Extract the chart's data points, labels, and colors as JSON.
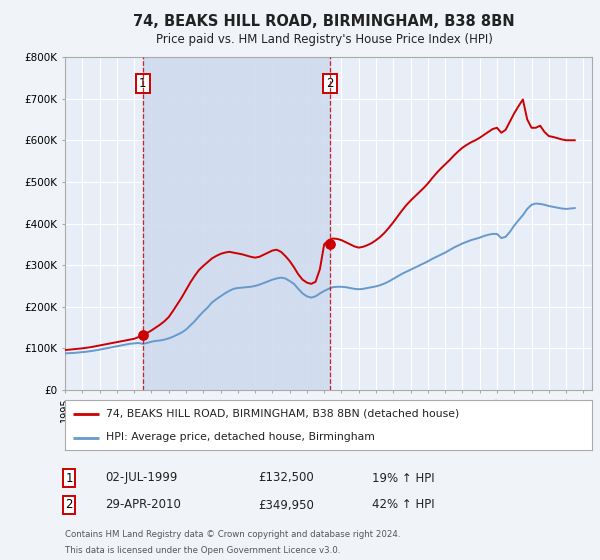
{
  "title": "74, BEAKS HILL ROAD, BIRMINGHAM, B38 8BN",
  "subtitle": "Price paid vs. HM Land Registry's House Price Index (HPI)",
  "bg_color": "#f0f4f8",
  "plot_bg_color": "#e8eef8",
  "grid_color": "#ffffff",
  "red_color": "#cc0000",
  "blue_color": "#6699cc",
  "shade_color": "#cdd9ee",
  "ylim": [
    0,
    800000
  ],
  "yticks": [
    0,
    100000,
    200000,
    300000,
    400000,
    500000,
    600000,
    700000,
    800000
  ],
  "ytick_labels": [
    "£0",
    "£100K",
    "£200K",
    "£300K",
    "£400K",
    "£500K",
    "£600K",
    "£700K",
    "£800K"
  ],
  "xmin": 1995.0,
  "xmax": 2025.5,
  "marker1_x": 1999.5,
  "marker1_y": 132500,
  "marker2_x": 2010.33,
  "marker2_y": 349950,
  "vline1_x": 1999.5,
  "vline2_x": 2010.33,
  "legend_line1": "74, BEAKS HILL ROAD, BIRMINGHAM, B38 8BN (detached house)",
  "legend_line2": "HPI: Average price, detached house, Birmingham",
  "table_row1": [
    "1",
    "02-JUL-1999",
    "£132,500",
    "19% ↑ HPI"
  ],
  "table_row2": [
    "2",
    "29-APR-2010",
    "£349,950",
    "42% ↑ HPI"
  ],
  "footer1": "Contains HM Land Registry data © Crown copyright and database right 2024.",
  "footer2": "This data is licensed under the Open Government Licence v3.0.",
  "hpi_data": {
    "years": [
      1995.0,
      1995.25,
      1995.5,
      1995.75,
      1996.0,
      1996.25,
      1996.5,
      1996.75,
      1997.0,
      1997.25,
      1997.5,
      1997.75,
      1998.0,
      1998.25,
      1998.5,
      1998.75,
      1999.0,
      1999.25,
      1999.5,
      1999.75,
      2000.0,
      2000.25,
      2000.5,
      2000.75,
      2001.0,
      2001.25,
      2001.5,
      2001.75,
      2002.0,
      2002.25,
      2002.5,
      2002.75,
      2003.0,
      2003.25,
      2003.5,
      2003.75,
      2004.0,
      2004.25,
      2004.5,
      2004.75,
      2005.0,
      2005.25,
      2005.5,
      2005.75,
      2006.0,
      2006.25,
      2006.5,
      2006.75,
      2007.0,
      2007.25,
      2007.5,
      2007.75,
      2008.0,
      2008.25,
      2008.5,
      2008.75,
      2009.0,
      2009.25,
      2009.5,
      2009.75,
      2010.0,
      2010.25,
      2010.5,
      2010.75,
      2011.0,
      2011.25,
      2011.5,
      2011.75,
      2012.0,
      2012.25,
      2012.5,
      2012.75,
      2013.0,
      2013.25,
      2013.5,
      2013.75,
      2014.0,
      2014.25,
      2014.5,
      2014.75,
      2015.0,
      2015.25,
      2015.5,
      2015.75,
      2016.0,
      2016.25,
      2016.5,
      2016.75,
      2017.0,
      2017.25,
      2017.5,
      2017.75,
      2018.0,
      2018.25,
      2018.5,
      2018.75,
      2019.0,
      2019.25,
      2019.5,
      2019.75,
      2020.0,
      2020.25,
      2020.5,
      2020.75,
      2021.0,
      2021.25,
      2021.5,
      2021.75,
      2022.0,
      2022.25,
      2022.5,
      2022.75,
      2023.0,
      2023.25,
      2023.5,
      2023.75,
      2024.0,
      2024.25,
      2024.5
    ],
    "values": [
      88000,
      88500,
      89000,
      90000,
      91000,
      92000,
      93500,
      95000,
      97000,
      99000,
      101000,
      103000,
      105000,
      107000,
      109000,
      111000,
      112000,
      113000,
      111000,
      113000,
      116000,
      118000,
      119000,
      121000,
      124000,
      128000,
      133000,
      138000,
      145000,
      155000,
      165000,
      177000,
      188000,
      198000,
      210000,
      218000,
      225000,
      232000,
      238000,
      243000,
      245000,
      246000,
      247000,
      248000,
      250000,
      253000,
      257000,
      261000,
      265000,
      268000,
      270000,
      268000,
      262000,
      255000,
      243000,
      232000,
      225000,
      222000,
      225000,
      232000,
      238000,
      243000,
      247000,
      248000,
      248000,
      247000,
      245000,
      243000,
      242000,
      243000,
      245000,
      247000,
      249000,
      252000,
      256000,
      261000,
      267000,
      273000,
      279000,
      284000,
      289000,
      294000,
      299000,
      304000,
      309000,
      315000,
      320000,
      325000,
      330000,
      336000,
      342000,
      347000,
      352000,
      356000,
      360000,
      363000,
      366000,
      370000,
      373000,
      375000,
      375000,
      365000,
      368000,
      380000,
      395000,
      408000,
      420000,
      435000,
      445000,
      448000,
      447000,
      445000,
      442000,
      440000,
      438000,
      436000,
      435000,
      436000,
      437000
    ]
  },
  "red_data": {
    "years": [
      1995.0,
      1995.25,
      1995.5,
      1995.75,
      1996.0,
      1996.25,
      1996.5,
      1996.75,
      1997.0,
      1997.25,
      1997.5,
      1997.75,
      1998.0,
      1998.25,
      1998.5,
      1998.75,
      1999.0,
      1999.25,
      1999.5,
      1999.75,
      2000.0,
      2000.25,
      2000.5,
      2000.75,
      2001.0,
      2001.25,
      2001.5,
      2001.75,
      2002.0,
      2002.25,
      2002.5,
      2002.75,
      2003.0,
      2003.25,
      2003.5,
      2003.75,
      2004.0,
      2004.25,
      2004.5,
      2004.75,
      2005.0,
      2005.25,
      2005.5,
      2005.75,
      2006.0,
      2006.25,
      2006.5,
      2006.75,
      2007.0,
      2007.25,
      2007.5,
      2007.75,
      2008.0,
      2008.25,
      2008.5,
      2008.75,
      2009.0,
      2009.25,
      2009.5,
      2009.75,
      2010.0,
      2010.25,
      2010.5,
      2010.75,
      2011.0,
      2011.25,
      2011.5,
      2011.75,
      2012.0,
      2012.25,
      2012.5,
      2012.75,
      2013.0,
      2013.25,
      2013.5,
      2013.75,
      2014.0,
      2014.25,
      2014.5,
      2014.75,
      2015.0,
      2015.25,
      2015.5,
      2015.75,
      2016.0,
      2016.25,
      2016.5,
      2016.75,
      2017.0,
      2017.25,
      2017.5,
      2017.75,
      2018.0,
      2018.25,
      2018.5,
      2018.75,
      2019.0,
      2019.25,
      2019.5,
      2019.75,
      2020.0,
      2020.25,
      2020.5,
      2020.75,
      2021.0,
      2021.25,
      2021.5,
      2021.75,
      2022.0,
      2022.25,
      2022.5,
      2022.75,
      2023.0,
      2023.25,
      2023.5,
      2023.75,
      2024.0,
      2024.25,
      2024.5
    ],
    "values": [
      96000,
      97000,
      98000,
      99000,
      100000,
      101500,
      103000,
      105000,
      107000,
      109000,
      111000,
      113000,
      115000,
      117000,
      119000,
      121000,
      123000,
      127000,
      132500,
      137000,
      143000,
      150000,
      157000,
      165000,
      175000,
      190000,
      206000,
      222000,
      240000,
      258000,
      274000,
      288000,
      298000,
      307000,
      316000,
      322000,
      327000,
      330000,
      332000,
      330000,
      328000,
      326000,
      323000,
      320000,
      318000,
      320000,
      325000,
      330000,
      335000,
      337000,
      332000,
      322000,
      310000,
      295000,
      278000,
      265000,
      258000,
      255000,
      260000,
      290000,
      349950,
      360000,
      364000,
      363000,
      360000,
      355000,
      350000,
      345000,
      342000,
      344000,
      348000,
      353000,
      360000,
      368000,
      378000,
      390000,
      403000,
      417000,
      431000,
      444000,
      455000,
      465000,
      475000,
      485000,
      496000,
      509000,
      521000,
      532000,
      542000,
      552000,
      563000,
      573000,
      582000,
      589000,
      595000,
      600000,
      606000,
      613000,
      620000,
      627000,
      630000,
      618000,
      625000,
      645000,
      665000,
      682000,
      698000,
      650000,
      630000,
      630000,
      635000,
      620000,
      610000,
      608000,
      605000,
      602000,
      600000,
      600000,
      600000
    ]
  }
}
